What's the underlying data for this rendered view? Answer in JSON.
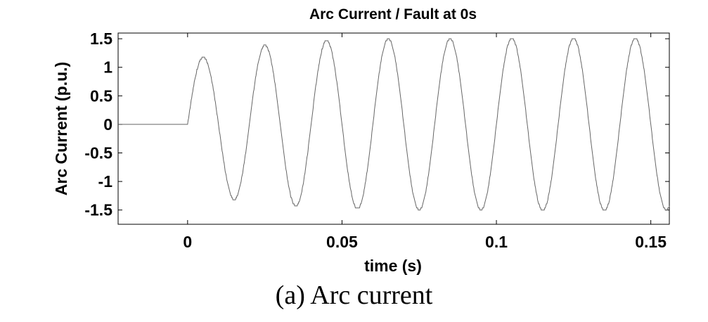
{
  "chart_data": {
    "type": "line",
    "title": "Arc Current / Fault at 0s",
    "xlabel": "time (s)",
    "ylabel": "Arc Current (p.u.)",
    "xlim": [
      -0.0225,
      0.156
    ],
    "ylim": [
      -1.75,
      1.6
    ],
    "xticks": [
      0,
      0.05,
      0.1,
      0.15
    ],
    "xtick_labels": [
      "0",
      "0.05",
      "0.1",
      "0.15"
    ],
    "yticks": [
      1.5,
      1,
      0.5,
      0,
      -0.5,
      -1,
      -1.5
    ],
    "ytick_labels": [
      "1.5",
      "1",
      "0.5",
      "0",
      "-0.5",
      "-1",
      "-1.5"
    ],
    "grid": false,
    "line_color": "#666666",
    "series": [
      {
        "fault_time": 0,
        "frequency_hz": 50,
        "x": [
          0.005,
          0.015,
          0.025,
          0.035,
          0.045,
          0.055,
          0.065,
          0.075,
          0.085,
          0.095,
          0.105,
          0.115,
          0.125,
          0.135,
          0.145,
          0.155
        ],
        "values": [
          1.17,
          -1.32,
          1.39,
          -1.43,
          1.47,
          -1.48,
          1.5,
          -1.5,
          1.5,
          -1.5,
          1.51,
          -1.51,
          1.51,
          -1.51,
          1.51,
          -1.5
        ]
      }
    ]
  },
  "caption": "(a) Arc current"
}
